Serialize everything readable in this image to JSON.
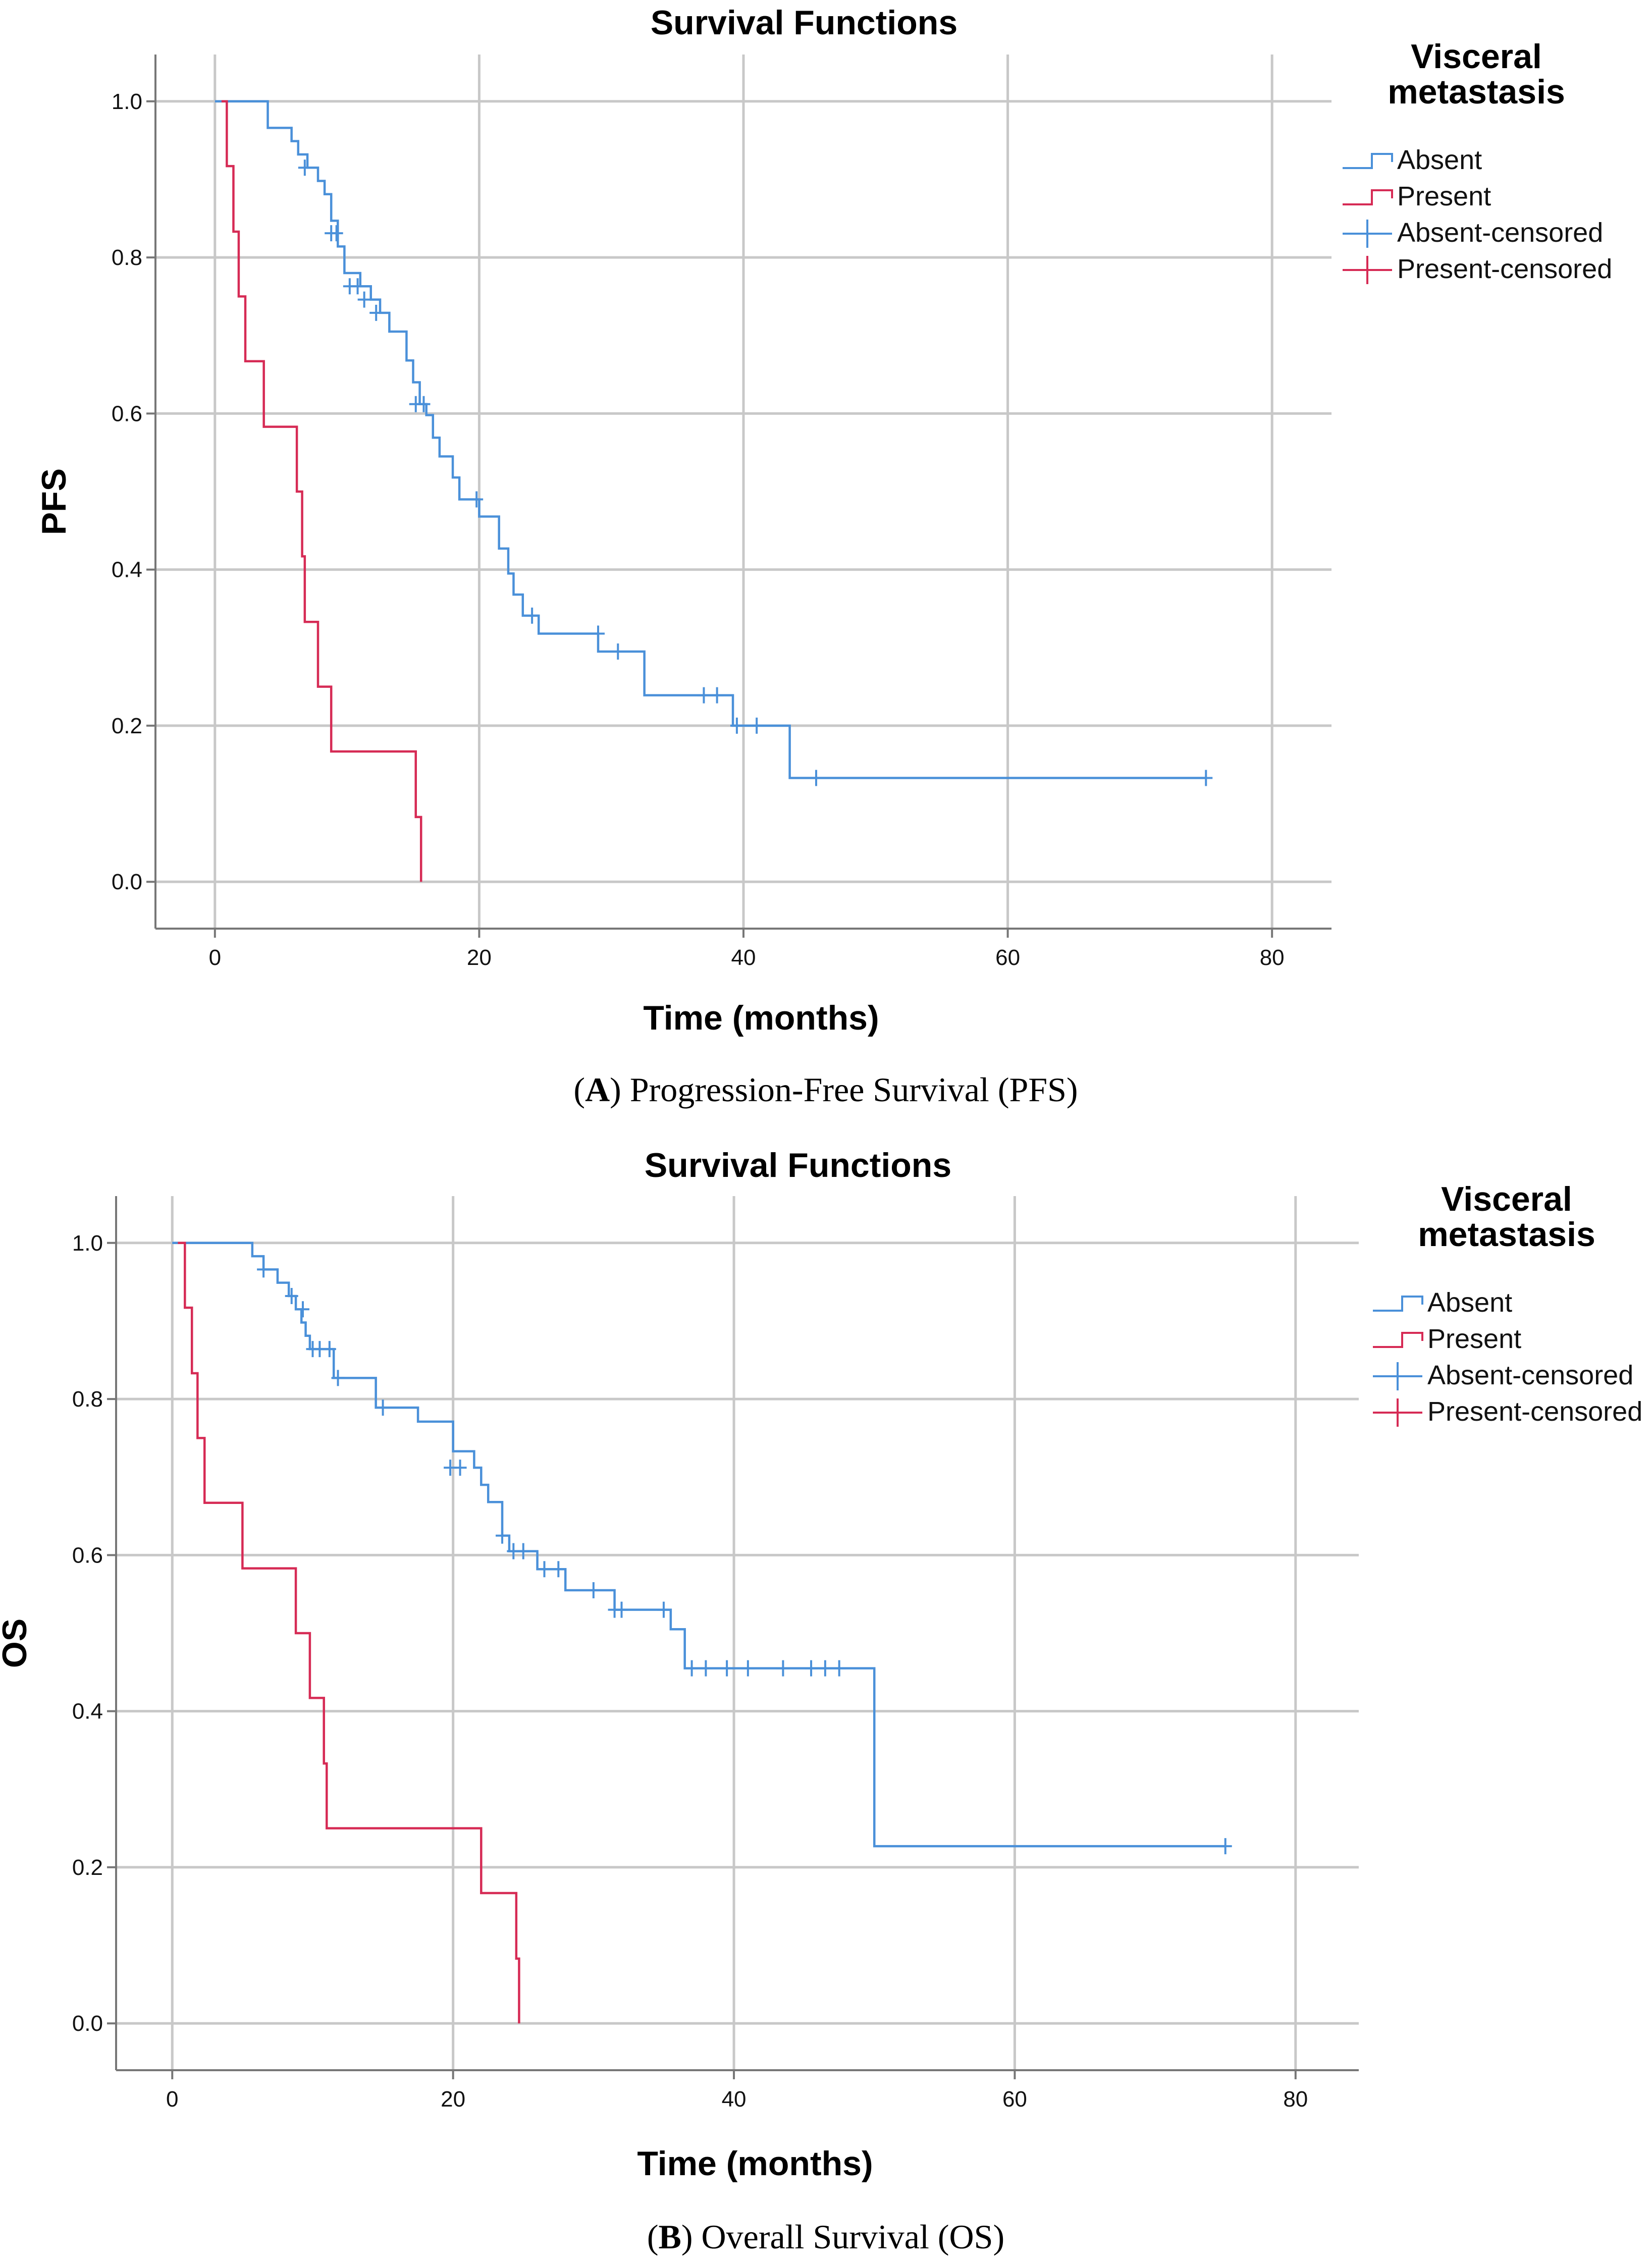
{
  "chart_data": [
    {
      "id": "pfs",
      "type": "line",
      "subtype": "kaplan-meier",
      "title": "Survival Functions",
      "xlabel": "Time (months)",
      "ylabel": "PFS",
      "xlim": [
        -4.5,
        84.5
      ],
      "ylim": [
        -0.06,
        1.06
      ],
      "xticks": [
        0,
        20,
        40,
        60,
        80
      ],
      "yticks": [
        0.0,
        0.2,
        0.4,
        0.6,
        0.8,
        1.0
      ],
      "ytick_labels": [
        "0.0",
        "0.2",
        "0.4",
        "0.6",
        "0.8",
        "1.0"
      ],
      "grid": true,
      "legend": {
        "title_lines": [
          "Visceral",
          "metastasis"
        ],
        "position": "right",
        "entries": [
          "Absent",
          "Present",
          "Absent-censored",
          "Present-censored"
        ]
      },
      "caption": {
        "letter": "A",
        "text": ") Progression-Free Survival (PFS)",
        "prefix": "("
      },
      "series": [
        {
          "name": "Absent",
          "color": "#4a90d9",
          "steps": [
            [
              0,
              1.0
            ],
            [
              4,
              0.966
            ],
            [
              5.8,
              0.949
            ],
            [
              6.3,
              0.932
            ],
            [
              7,
              0.915
            ],
            [
              7.8,
              0.898
            ],
            [
              8.3,
              0.881
            ],
            [
              8.8,
              0.847
            ],
            [
              9.3,
              0.814
            ],
            [
              9.8,
              0.78
            ],
            [
              11,
              0.763
            ],
            [
              11.8,
              0.746
            ],
            [
              12.5,
              0.729
            ],
            [
              13.2,
              0.705
            ],
            [
              14.5,
              0.668
            ],
            [
              15,
              0.64
            ],
            [
              15.5,
              0.612
            ],
            [
              16,
              0.598
            ],
            [
              16.5,
              0.569
            ],
            [
              17,
              0.545
            ],
            [
              18,
              0.518
            ],
            [
              18.5,
              0.49
            ],
            [
              20,
              0.468
            ],
            [
              21.5,
              0.427
            ],
            [
              22.2,
              0.395
            ],
            [
              22.6,
              0.368
            ],
            [
              23.3,
              0.341
            ],
            [
              24.5,
              0.318
            ],
            [
              29,
              0.295
            ],
            [
              32.5,
              0.239
            ],
            [
              39.2,
              0.2
            ],
            [
              43.5,
              0.133
            ],
            [
              75,
              0.133
            ]
          ],
          "censored": [
            [
              6.8,
              0.915
            ],
            [
              8.8,
              0.831
            ],
            [
              9.2,
              0.831
            ],
            [
              10.2,
              0.763
            ],
            [
              10.8,
              0.763
            ],
            [
              11.3,
              0.746
            ],
            [
              12.2,
              0.729
            ],
            [
              15.2,
              0.612
            ],
            [
              15.8,
              0.612
            ],
            [
              19.8,
              0.49
            ],
            [
              24,
              0.341
            ],
            [
              29,
              0.318
            ],
            [
              30.5,
              0.295
            ],
            [
              37,
              0.239
            ],
            [
              38,
              0.239
            ],
            [
              39.5,
              0.2
            ],
            [
              41,
              0.2
            ],
            [
              45.5,
              0.133
            ],
            [
              75,
              0.133
            ]
          ]
        },
        {
          "name": "Present",
          "color": "#d62b55",
          "steps": [
            [
              0.5,
              1.0
            ],
            [
              0.9,
              0.917
            ],
            [
              1.4,
              0.833
            ],
            [
              1.8,
              0.75
            ],
            [
              2.3,
              0.667
            ],
            [
              3.7,
              0.583
            ],
            [
              6.2,
              0.5
            ],
            [
              6.6,
              0.417
            ],
            [
              6.8,
              0.333
            ],
            [
              7.8,
              0.25
            ],
            [
              8.8,
              0.167
            ],
            [
              15.2,
              0.083
            ],
            [
              15.6,
              0.0
            ]
          ],
          "censored": []
        }
      ]
    },
    {
      "id": "os",
      "type": "line",
      "subtype": "kaplan-meier",
      "title": "Survival Functions",
      "xlabel": "Time (months)",
      "ylabel": "OS",
      "xlim": [
        -4,
        84.5
      ],
      "ylim": [
        -0.06,
        1.06
      ],
      "xticks": [
        0,
        20,
        40,
        60,
        80
      ],
      "yticks": [
        0.0,
        0.2,
        0.4,
        0.6,
        0.8,
        1.0
      ],
      "ytick_labels": [
        "0.0",
        "0.2",
        "0.4",
        "0.6",
        "0.8",
        "1.0"
      ],
      "grid": true,
      "legend": {
        "title_lines": [
          "Visceral",
          "metastasis"
        ],
        "position": "right",
        "entries": [
          "Absent",
          "Present",
          "Absent-censored",
          "Present-censored"
        ]
      },
      "caption": {
        "letter": "B",
        "text": ") Overall Survival (OS)",
        "prefix": "("
      },
      "series": [
        {
          "name": "Absent",
          "color": "#4a90d9",
          "steps": [
            [
              0,
              1.0
            ],
            [
              5.7,
              0.983
            ],
            [
              6.5,
              0.966
            ],
            [
              7.5,
              0.949
            ],
            [
              8.3,
              0.932
            ],
            [
              8.8,
              0.915
            ],
            [
              9.2,
              0.898
            ],
            [
              9.5,
              0.881
            ],
            [
              9.8,
              0.864
            ],
            [
              11.5,
              0.827
            ],
            [
              14.5,
              0.789
            ],
            [
              17.5,
              0.771
            ],
            [
              20,
              0.733
            ],
            [
              21.5,
              0.712
            ],
            [
              22,
              0.69
            ],
            [
              22.5,
              0.668
            ],
            [
              23.5,
              0.625
            ],
            [
              24,
              0.605
            ],
            [
              26,
              0.582
            ],
            [
              28,
              0.555
            ],
            [
              31.5,
              0.53
            ],
            [
              35.5,
              0.505
            ],
            [
              36.5,
              0.455
            ],
            [
              50,
              0.227
            ],
            [
              75,
              0.227
            ]
          ],
          "censored": [
            [
              6.5,
              0.966
            ],
            [
              8.5,
              0.932
            ],
            [
              9.3,
              0.915
            ],
            [
              10,
              0.864
            ],
            [
              10.5,
              0.864
            ],
            [
              11.2,
              0.864
            ],
            [
              11.8,
              0.827
            ],
            [
              15,
              0.789
            ],
            [
              19.8,
              0.712
            ],
            [
              20.5,
              0.712
            ],
            [
              23.5,
              0.625
            ],
            [
              24.3,
              0.605
            ],
            [
              25,
              0.605
            ],
            [
              26.5,
              0.582
            ],
            [
              27.5,
              0.582
            ],
            [
              30,
              0.555
            ],
            [
              31.5,
              0.53
            ],
            [
              32,
              0.53
            ],
            [
              35,
              0.53
            ],
            [
              37,
              0.455
            ],
            [
              38,
              0.455
            ],
            [
              39.5,
              0.455
            ],
            [
              41,
              0.455
            ],
            [
              43.5,
              0.455
            ],
            [
              45.5,
              0.455
            ],
            [
              46.5,
              0.455
            ],
            [
              47.5,
              0.455
            ],
            [
              75,
              0.227
            ]
          ]
        },
        {
          "name": "Present",
          "color": "#d62b55",
          "steps": [
            [
              0.4,
              1.0
            ],
            [
              0.9,
              0.917
            ],
            [
              1.4,
              0.833
            ],
            [
              1.8,
              0.75
            ],
            [
              2.3,
              0.667
            ],
            [
              5,
              0.583
            ],
            [
              8.8,
              0.5
            ],
            [
              9.8,
              0.417
            ],
            [
              10.8,
              0.333
            ],
            [
              11,
              0.25
            ],
            [
              22,
              0.167
            ],
            [
              24.5,
              0.083
            ],
            [
              24.7,
              0.0
            ]
          ],
          "censored": []
        }
      ]
    }
  ]
}
